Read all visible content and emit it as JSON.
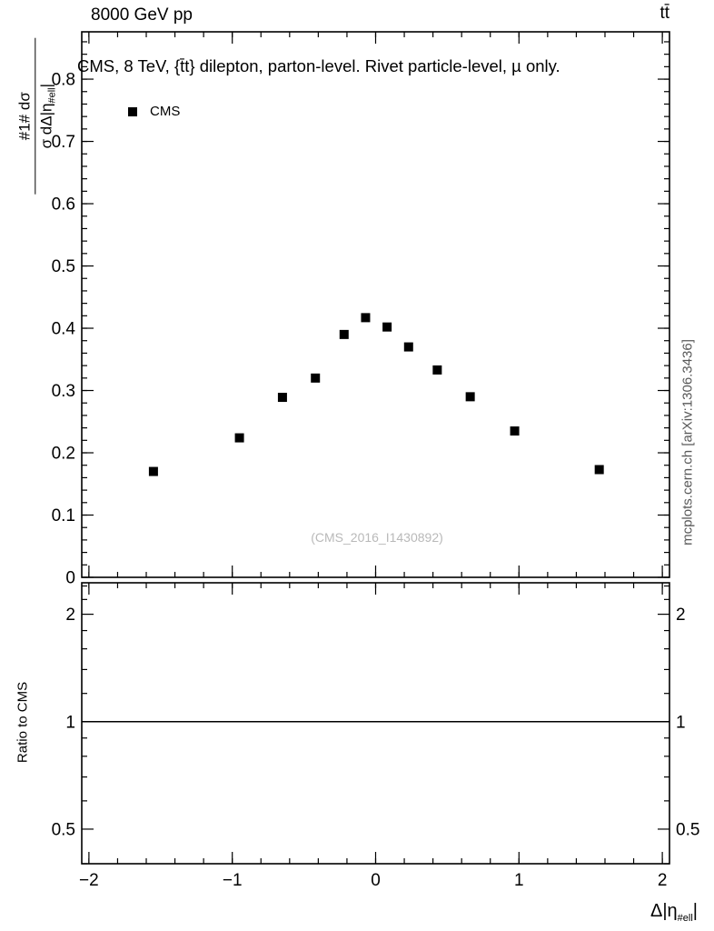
{
  "header": {
    "left": "8000 GeV pp",
    "right": "tt̄"
  },
  "title": "CMS, 8 TeV, {t̄t} dilepton, parton-level. Rivet particle-level, µ only.",
  "legend": {
    "entries": [
      {
        "label": "CMS",
        "marker": "filled-square",
        "color": "#000000"
      }
    ]
  },
  "main_ylabel": {
    "numerator": "#1# dσ",
    "denominator_pre": "σ dΔ|η",
    "denominator_sub": "#ell",
    "denominator_post": "|"
  },
  "ratio_ylabel": "Ratio to CMS",
  "xlabel": {
    "pre": "Δ|η",
    "sub": "#ell",
    "post": "|"
  },
  "watermark": "(CMS_2016_I1430892)",
  "side_label": "mcplots.cern.ch [arXiv:1306.3436]",
  "colors": {
    "marker": "#000000",
    "frame": "#000000",
    "watermark": "#b9b9b9",
    "side_label": "#595959"
  },
  "chart_data": {
    "type": "scatter",
    "title": "CMS, 8 TeV, {t̄t} dilepton, parton-level. Rivet particle-level, µ only.",
    "xlabel": "Δ|η_#ell|",
    "ylabel": "1/σ dσ/dΔ|η_#ell|",
    "x_axis": {
      "lim": [
        -2.05,
        2.05
      ],
      "ticks": [
        -2,
        -1,
        0,
        1,
        2
      ],
      "tick_labels": [
        "−2",
        "−1",
        "0",
        "1",
        "2"
      ],
      "minor_step": 0.2
    },
    "main_panel": {
      "ylim": [
        0,
        0.876
      ],
      "yticks": [
        0,
        0.1,
        0.2,
        0.3,
        0.4,
        0.5,
        0.6,
        0.7,
        0.8
      ],
      "ytick_labels": [
        "0",
        "0.1",
        "0.2",
        "0.3",
        "0.4",
        "0.5",
        "0.6",
        "0.7",
        "0.8"
      ],
      "y_minor_step": 0.02,
      "grid": false
    },
    "ratio_panel": {
      "yscale": "log",
      "ylim": [
        0.4,
        2.45
      ],
      "yticks": [
        0.5,
        1,
        2
      ],
      "ytick_labels": [
        "0.5",
        "1",
        "2"
      ],
      "y_minor_ticks": [
        0.4,
        0.6,
        0.7,
        0.8,
        0.9,
        1.2,
        1.4,
        1.6,
        1.8,
        2.2,
        2.4
      ],
      "reference_line": 1
    },
    "series": [
      {
        "name": "CMS",
        "marker": "filled-square",
        "color": "#000000",
        "points": [
          [
            -1.55,
            0.17
          ],
          [
            -0.95,
            0.224
          ],
          [
            -0.65,
            0.289
          ],
          [
            -0.42,
            0.32
          ],
          [
            -0.22,
            0.39
          ],
          [
            -0.07,
            0.417
          ],
          [
            0.08,
            0.402
          ],
          [
            0.23,
            0.37
          ],
          [
            0.43,
            0.333
          ],
          [
            0.66,
            0.29
          ],
          [
            0.97,
            0.235
          ],
          [
            1.56,
            0.173
          ]
        ]
      }
    ]
  }
}
